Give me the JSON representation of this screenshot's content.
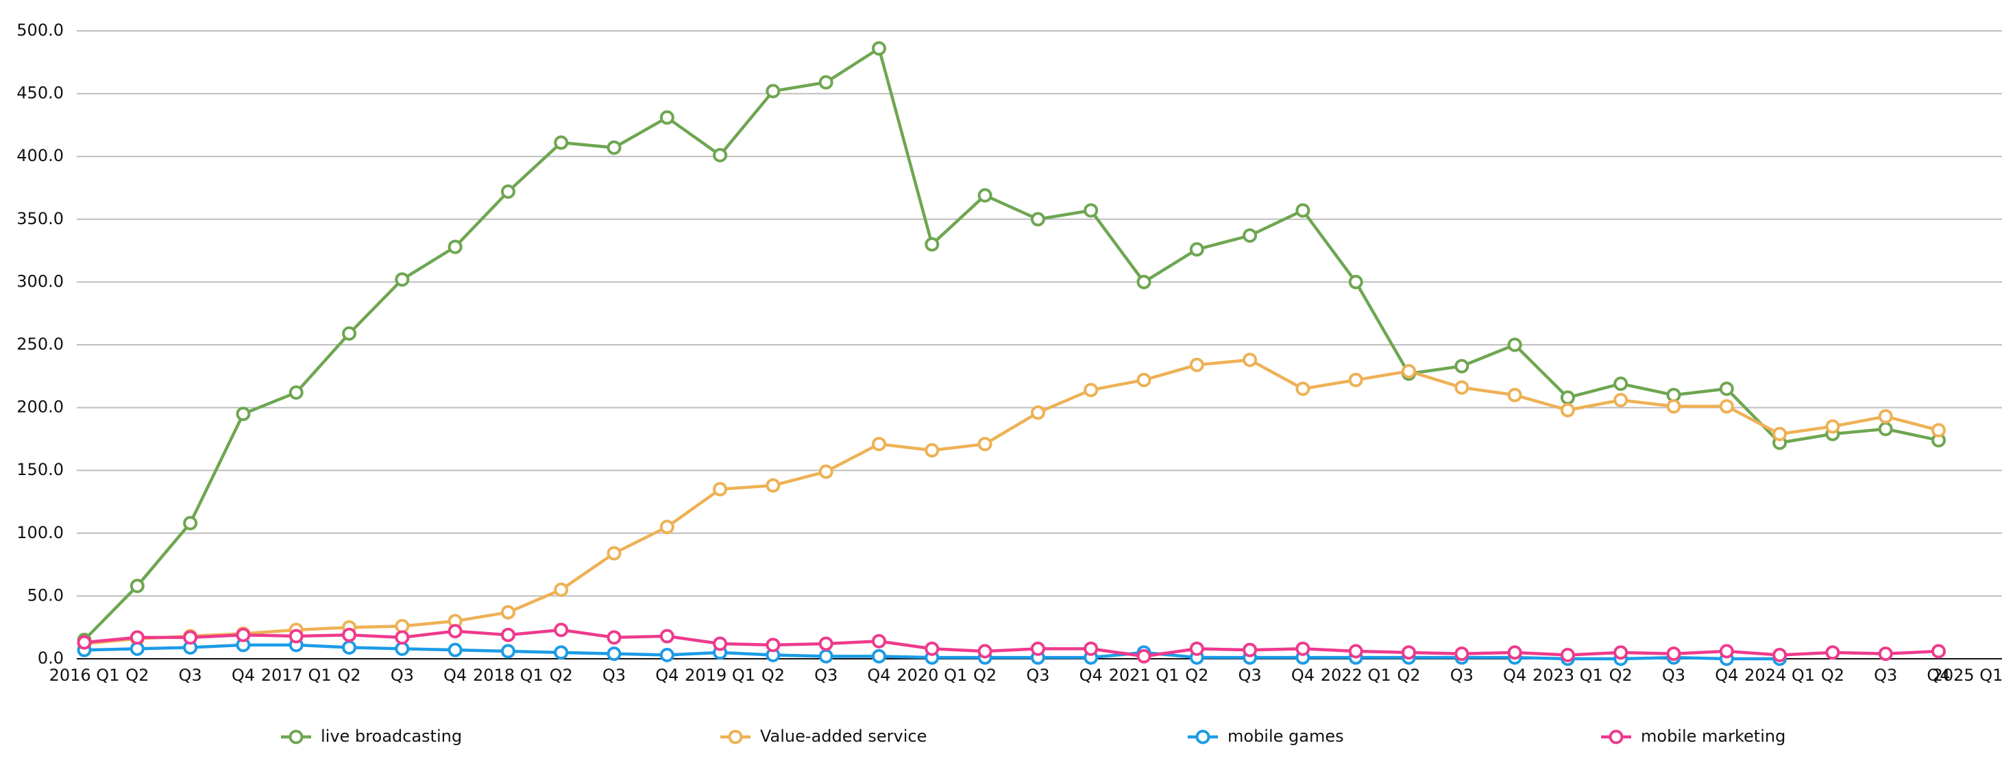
{
  "chart_data": {
    "type": "line",
    "categories": [
      "2016 Q1",
      "Q2",
      "Q3",
      "Q4",
      "2017 Q1",
      "Q2",
      "Q3",
      "Q4",
      "2018 Q1",
      "Q2",
      "Q3",
      "Q4",
      "2019 Q1",
      "Q2",
      "Q3",
      "Q4",
      "2020 Q1",
      "Q2",
      "Q3",
      "Q4",
      "2021 Q1",
      "Q2",
      "Q3",
      "Q4",
      "2022 Q1",
      "Q2",
      "Q3",
      "Q4",
      "2023 Q1",
      "Q2",
      "Q3",
      "Q4",
      "2024 Q1",
      "Q2",
      "Q3",
      "Q4",
      "2025 Q1"
    ],
    "series": [
      {
        "name": "live broadcasting",
        "color": "#6ea651",
        "values": [
          15,
          58,
          108,
          195,
          212,
          259,
          302,
          328,
          372,
          411,
          407,
          431,
          401,
          452,
          459,
          486,
          330,
          369,
          350,
          357,
          300,
          326,
          337,
          357,
          300,
          227,
          233,
          250,
          208,
          219,
          210,
          215,
          172,
          179,
          183,
          174,
          null
        ]
      },
      {
        "name": "Value-added service",
        "color": "#eeb155",
        "values": [
          12,
          16,
          18,
          20,
          23,
          25,
          26,
          30,
          37,
          55,
          84,
          105,
          135,
          138,
          149,
          171,
          166,
          171,
          196,
          214,
          222,
          234,
          238,
          215,
          222,
          229,
          216,
          210,
          198,
          206,
          201,
          201,
          179,
          185,
          193,
          182,
          null
        ]
      },
      {
        "name": "mobile games",
        "color": "#1c9be6",
        "values": [
          7,
          8,
          9,
          11,
          11,
          9,
          8,
          7,
          6,
          5,
          4,
          3,
          5,
          3,
          2,
          2,
          1,
          1,
          1,
          1,
          5,
          1,
          1,
          1,
          1,
          1,
          1,
          1,
          0,
          0,
          1,
          0,
          0,
          null,
          null,
          null,
          null
        ]
      },
      {
        "name": "mobile marketing",
        "color": "#ee3a8c",
        "values": [
          13,
          17,
          17,
          19,
          18,
          19,
          17,
          22,
          19,
          23,
          17,
          18,
          12,
          11,
          12,
          14,
          8,
          6,
          8,
          8,
          2,
          8,
          7,
          8,
          6,
          5,
          4,
          5,
          3,
          5,
          4,
          6,
          3,
          5,
          4,
          6,
          null
        ]
      }
    ],
    "ylim": [
      0,
      500
    ],
    "yticks": [
      {
        "value": 0,
        "label": "0.0"
      },
      {
        "value": 50,
        "label": "50.0"
      },
      {
        "value": 100,
        "label": "100.0"
      },
      {
        "value": 150,
        "label": "150.0"
      },
      {
        "value": 200,
        "label": "200.0"
      },
      {
        "value": 250,
        "label": "250.0"
      },
      {
        "value": 300,
        "label": "300.0"
      },
      {
        "value": 350,
        "label": "350.0"
      },
      {
        "value": 400,
        "label": "400.0"
      },
      {
        "value": 450,
        "label": "450.0"
      },
      {
        "value": 500,
        "label": "500.0"
      }
    ],
    "grid": true,
    "legend": "bottom"
  }
}
